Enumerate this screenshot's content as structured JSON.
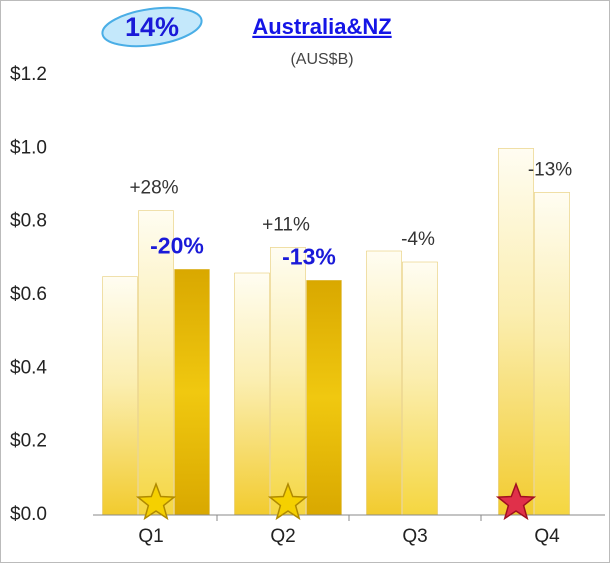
{
  "chart_data": {
    "type": "bar",
    "badge": "14%",
    "title": "Australia&NZ",
    "subtitle": "(AUS$B)",
    "categories": [
      "Q1",
      "Q2",
      "Q3",
      "Q4"
    ],
    "series": [
      {
        "color": "#f2cb2e",
        "values": [
          0.65,
          0.66,
          0.72,
          1.0
        ]
      },
      {
        "color": "#f5d640",
        "values": [
          0.83,
          0.73,
          0.69,
          0.88
        ],
        "annotations": [
          "+28%",
          "+11%",
          "-4%",
          "-13%"
        ]
      },
      {
        "color": "#d9a800",
        "values": [
          0.67,
          0.64,
          null,
          null
        ],
        "annotations": [
          "-20%",
          "-13%",
          null,
          null
        ]
      }
    ],
    "ylim": [
      0,
      1.2
    ],
    "yticks": [
      {
        "value": 0,
        "label": "$0.0"
      },
      {
        "value": 0.2,
        "label": "$0.2"
      },
      {
        "value": 0.4,
        "label": "$0.4"
      },
      {
        "value": 0.6,
        "label": "$0.6"
      },
      {
        "value": 0.8,
        "label": "$0.8"
      },
      {
        "value": 1.0,
        "label": "$1.0"
      },
      {
        "value": 1.2,
        "label": "$1.2"
      }
    ],
    "grid": false
  }
}
